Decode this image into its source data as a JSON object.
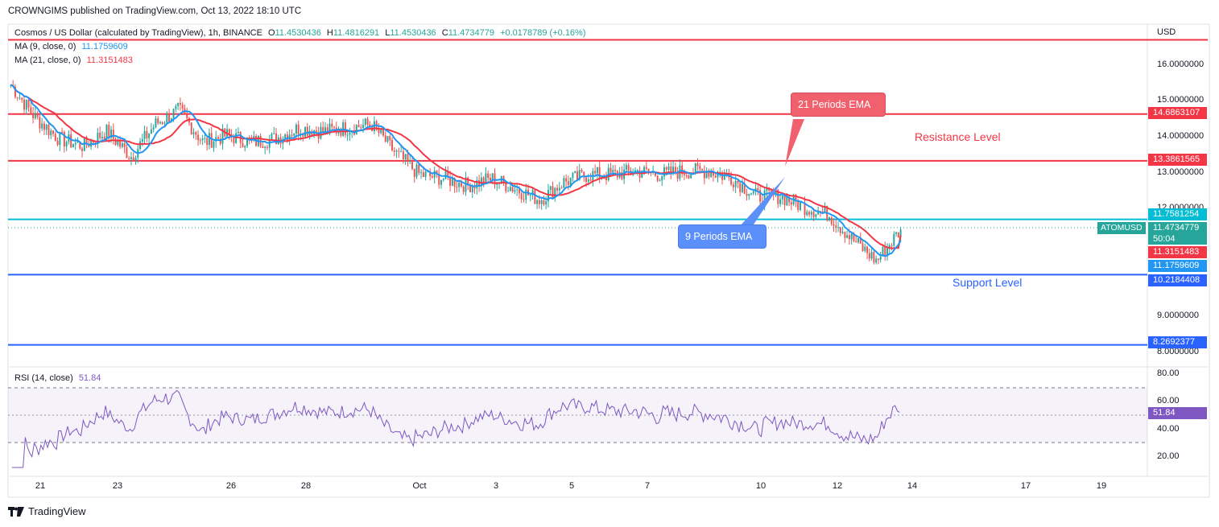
{
  "publisher_line": "CROWNGIMS published on TradingView.com, Oct 13, 2022 18:10 UTC",
  "legend": {
    "symbol_line": "Cosmos / US Dollar (calculated by TradingView), 1h, BINANCE",
    "o_label": "O",
    "o_value": "11.4530436",
    "h_label": "H",
    "h_value": "11.4816291",
    "l_label": "L",
    "l_value": "11.4530436",
    "c_label": "C",
    "c_value": "11.4734779",
    "change": "+0.0178789 (+0.16%)",
    "ma9_label": "MA (9, close, 0)",
    "ma9_value": "11.1759609",
    "ma21_label": "MA (21, close, 0)",
    "ma21_value": "11.3151483",
    "rsi_label": "RSI (14, close)",
    "rsi_value": "51.84"
  },
  "currency": "USD",
  "ticker": "ATOMUSD",
  "countdown": "50:04",
  "annotations": {
    "resistance": "Resistance Level",
    "support": "Support Level",
    "ema21": "21 Periods EMA",
    "ema9": "9 Periods EMA"
  },
  "brand": "TradingView",
  "colors": {
    "red": "#f23645",
    "blue": "#2962ff",
    "cyan": "#00bcd4",
    "green": "#26a69a",
    "ma9": "#2196f3",
    "ma21": "#f23645",
    "rsi": "#7e57c2",
    "callout_red": "#f0606d",
    "callout_blue": "#5b8ff9"
  },
  "chart_data": [
    {
      "type": "candlestick",
      "title": "Cosmos / US Dollar (calculated by TradingView), 1h, BINANCE",
      "ylabel": "USD",
      "ylim": [
        7.9,
        17.2
      ],
      "x_ticks": [
        "21",
        "23",
        "26",
        "28",
        "Oct",
        "3",
        "5",
        "7",
        "10",
        "12",
        "14",
        "17",
        "19"
      ],
      "y_ticks": [
        "8.0000000",
        "9.0000000",
        "12.0000000",
        "13.0000000",
        "14.0000000",
        "15.0000000",
        "16.0000000"
      ],
      "horizontal_levels": [
        {
          "value": 16.75,
          "label": "",
          "color": "#f23645"
        },
        {
          "value": 14.6863107,
          "label": "14.6863107",
          "color": "#f23645"
        },
        {
          "value": 13.3861565,
          "label": "13.3861565",
          "color": "#f23645"
        },
        {
          "value": 11.7581254,
          "label": "11.7581254",
          "color": "#00bcd4"
        },
        {
          "value": 10.2184408,
          "label": "10.2184408",
          "color": "#2962ff"
        },
        {
          "value": 8.2692377,
          "label": "8.2692377",
          "color": "#2962ff"
        }
      ],
      "last_price": 11.4734779,
      "last_price_label": "11.4734779",
      "ma21_label": "11.3151483",
      "ma9_label": "11.1759609",
      "close_path": [
        [
          "Sep 20",
          15.5
        ],
        [
          "Sep 20",
          14.6
        ],
        [
          "Sep 21",
          14.0
        ],
        [
          "Sep 21",
          13.8
        ],
        [
          "Sep 22",
          14.2
        ],
        [
          "Sep 22",
          13.5
        ],
        [
          "Sep 23",
          14.4
        ],
        [
          "Sep 23",
          14.8
        ],
        [
          "Sep 24",
          13.9
        ],
        [
          "Sep 24",
          14.1
        ],
        [
          "Sep 25",
          13.9
        ],
        [
          "Sep 25",
          14.0
        ],
        [
          "Sep 26",
          14.3
        ],
        [
          "Sep 26",
          14.2
        ],
        [
          "Sep 27",
          14.3
        ],
        [
          "Sep 27",
          14.4
        ],
        [
          "Sep 28",
          13.6
        ],
        [
          "Sep 28",
          13.0
        ],
        [
          "Sep 29",
          12.9
        ],
        [
          "Sep 30",
          12.7
        ],
        [
          "Oct 1",
          12.9
        ],
        [
          "Oct 2",
          12.6
        ],
        [
          "Oct 3",
          12.3
        ],
        [
          "Oct 4",
          12.8
        ],
        [
          "Oct 5",
          13.0
        ],
        [
          "Oct 6",
          13.0
        ],
        [
          "Oct 7",
          13.1
        ],
        [
          "Oct 8",
          13.0
        ],
        [
          "Oct 9",
          13.1
        ],
        [
          "Oct 10",
          13.1
        ],
        [
          "Oct 10",
          12.9
        ],
        [
          "Oct 11",
          12.4
        ],
        [
          "Oct 11",
          12.4
        ],
        [
          "Oct 12",
          12.1
        ],
        [
          "Oct 12",
          11.9
        ],
        [
          "Oct 13",
          11.2
        ],
        [
          "Oct 13",
          10.6
        ],
        [
          "Oct 13",
          11.47
        ]
      ]
    },
    {
      "type": "line",
      "title": "RSI (14, close)",
      "ylim": [
        10,
        85
      ],
      "y_ticks": [
        "20.00",
        "40.00",
        "60.00",
        "80.00"
      ],
      "bands": [
        30,
        50,
        70
      ],
      "last_value": 51.84
    }
  ]
}
